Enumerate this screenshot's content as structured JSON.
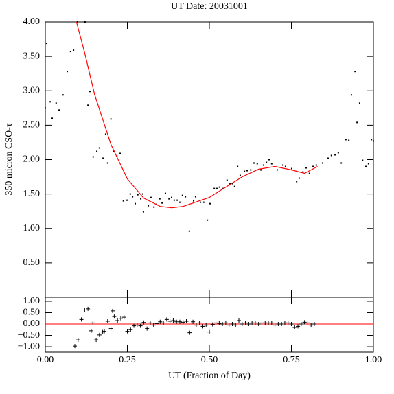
{
  "chart_data": [
    {
      "type": "scatter",
      "title": "UT Date: 20031001",
      "ylabel": "350 micron CSO-τ",
      "xlim": [
        0,
        1
      ],
      "ylim": [
        0,
        4
      ],
      "yticks": [
        {
          "value": 0.5,
          "label": "0.50"
        },
        {
          "value": 1,
          "label": "1.00"
        },
        {
          "value": 1.5,
          "label": "1.50"
        },
        {
          "value": 2,
          "label": "2.00"
        },
        {
          "value": 2.5,
          "label": "2.50"
        },
        {
          "value": 3,
          "label": "3.00"
        },
        {
          "value": 3.5,
          "label": "3.50"
        },
        {
          "value": 4,
          "label": "4.00"
        }
      ],
      "series": [
        {
          "marker": "dot",
          "color": "#000000",
          "x": [
            0.0,
            0.004,
            0.015,
            0.021,
            0.033,
            0.042,
            0.054,
            0.067,
            0.077,
            0.086,
            0.098,
            0.121,
            0.13,
            0.136,
            0.146,
            0.157,
            0.165,
            0.176,
            0.184,
            0.19,
            0.2,
            0.209,
            0.218,
            0.228,
            0.238,
            0.249,
            0.259,
            0.266,
            0.274,
            0.282,
            0.291,
            0.297,
            0.299,
            0.314,
            0.322,
            0.331,
            0.339,
            0.349,
            0.356,
            0.366,
            0.377,
            0.385,
            0.393,
            0.402,
            0.41,
            0.418,
            0.427,
            0.439,
            0.452,
            0.458,
            0.473,
            0.483,
            0.494,
            0.502,
            0.515,
            0.523,
            0.531,
            0.542,
            0.554,
            0.563,
            0.571,
            0.577,
            0.586,
            0.594,
            0.607,
            0.615,
            0.626,
            0.636,
            0.646,
            0.657,
            0.665,
            0.674,
            0.682,
            0.69,
            0.707,
            0.724,
            0.732,
            0.751,
            0.766,
            0.774,
            0.785,
            0.795,
            0.805,
            0.816,
            0.826,
            0.845,
            0.862,
            0.872,
            0.883,
            0.893,
            0.902,
            0.916,
            0.925,
            0.933,
            0.944,
            0.95,
            0.958,
            0.967,
            0.977,
            0.985,
            0.994,
            1.0
          ],
          "values": [
            2.75,
            3.69,
            2.84,
            2.6,
            2.82,
            2.72,
            2.94,
            3.28,
            3.57,
            3.59,
            4.0,
            4.0,
            2.79,
            2.99,
            2.04,
            2.12,
            2.17,
            2.02,
            2.37,
            1.95,
            2.59,
            2.12,
            2.05,
            2.09,
            1.4,
            1.41,
            1.5,
            1.46,
            1.36,
            1.49,
            1.43,
            1.5,
            1.24,
            1.33,
            1.45,
            1.31,
            1.35,
            1.43,
            1.37,
            1.51,
            1.43,
            1.45,
            1.41,
            1.41,
            1.38,
            1.48,
            1.46,
            0.96,
            1.4,
            1.46,
            1.38,
            1.38,
            1.12,
            1.36,
            1.58,
            1.58,
            1.6,
            1.58,
            1.7,
            1.65,
            1.65,
            1.61,
            1.9,
            1.77,
            1.83,
            1.84,
            1.85,
            1.95,
            1.94,
            1.85,
            1.92,
            1.96,
            2.0,
            1.94,
            1.85,
            1.92,
            1.9,
            1.87,
            1.68,
            1.73,
            1.82,
            1.88,
            1.8,
            1.9,
            1.92,
            1.95,
            2.02,
            2.06,
            2.07,
            2.1,
            1.95,
            2.29,
            2.28,
            2.94,
            3.28,
            2.54,
            2.82,
            1.99,
            1.9,
            1.94,
            2.29,
            2.27
          ]
        },
        {
          "marker": "line",
          "color": "#ff0000",
          "x": [
            0.095,
            0.12,
            0.15,
            0.2,
            0.25,
            0.3,
            0.35,
            0.385,
            0.42,
            0.5,
            0.55,
            0.6,
            0.65,
            0.7,
            0.75,
            0.79,
            0.83
          ],
          "values": [
            4.0,
            3.55,
            2.95,
            2.22,
            1.72,
            1.44,
            1.32,
            1.3,
            1.32,
            1.45,
            1.6,
            1.75,
            1.86,
            1.9,
            1.85,
            1.8,
            1.9
          ]
        }
      ]
    },
    {
      "type": "scatter",
      "xlabel": "UT (Fraction of Day)",
      "xlim": [
        0,
        1
      ],
      "ylim": [
        -1.24,
        1.18
      ],
      "xticks": [
        {
          "value": 0,
          "label": "0.00"
        },
        {
          "value": 0.25,
          "label": "0.25"
        },
        {
          "value": 0.5,
          "label": "0.50"
        },
        {
          "value": 0.75,
          "label": "0.75"
        },
        {
          "value": 1,
          "label": "1.00"
        }
      ],
      "yticks": [
        {
          "value": -1,
          "label": "−1.00"
        },
        {
          "value": -0.5,
          "label": "−0.50"
        },
        {
          "value": 0,
          "label": "0.00"
        },
        {
          "value": 0.5,
          "label": "0.50"
        },
        {
          "value": 1,
          "label": "1.00"
        }
      ],
      "zero_line_color": "#ff0000",
      "series": [
        {
          "marker": "plus",
          "color": "#000000",
          "x": [
            0.09,
            0.1,
            0.11,
            0.12,
            0.13,
            0.14,
            0.145,
            0.155,
            0.165,
            0.175,
            0.18,
            0.19,
            0.2,
            0.205,
            0.21,
            0.22,
            0.23,
            0.24,
            0.25,
            0.26,
            0.27,
            0.28,
            0.29,
            0.3,
            0.31,
            0.32,
            0.33,
            0.34,
            0.35,
            0.36,
            0.37,
            0.38,
            0.39,
            0.4,
            0.41,
            0.42,
            0.43,
            0.44,
            0.45,
            0.46,
            0.47,
            0.48,
            0.49,
            0.5,
            0.51,
            0.52,
            0.53,
            0.54,
            0.55,
            0.56,
            0.57,
            0.58,
            0.59,
            0.6,
            0.61,
            0.62,
            0.63,
            0.64,
            0.65,
            0.66,
            0.67,
            0.68,
            0.69,
            0.7,
            0.71,
            0.72,
            0.73,
            0.74,
            0.75,
            0.76,
            0.77,
            0.78,
            0.79,
            0.8,
            0.81,
            0.82
          ],
          "values": [
            -0.97,
            -0.7,
            0.2,
            0.62,
            0.67,
            -0.3,
            0.05,
            -0.7,
            -0.48,
            -0.35,
            -0.32,
            0.12,
            -0.2,
            0.58,
            0.33,
            0.15,
            0.25,
            0.3,
            -0.32,
            -0.25,
            -0.08,
            -0.05,
            -0.08,
            0.07,
            -0.2,
            0.05,
            -0.05,
            0.02,
            0.1,
            0.05,
            0.2,
            0.12,
            0.15,
            0.1,
            0.1,
            0.08,
            0.12,
            -0.38,
            0.1,
            -0.05,
            0.05,
            -0.1,
            -0.05,
            -0.35,
            -0.02,
            0.05,
            0.03,
            0.0,
            0.05,
            -0.05,
            0.0,
            -0.05,
            0.15,
            0.0,
            0.05,
            0.0,
            0.05,
            0.05,
            0.0,
            0.05,
            0.05,
            0.05,
            0.05,
            -0.05,
            0.0,
            0.0,
            0.05,
            0.05,
            0.0,
            -0.15,
            -0.1,
            0.0,
            0.08,
            0.05,
            -0.05,
            0.0
          ]
        }
      ]
    }
  ]
}
